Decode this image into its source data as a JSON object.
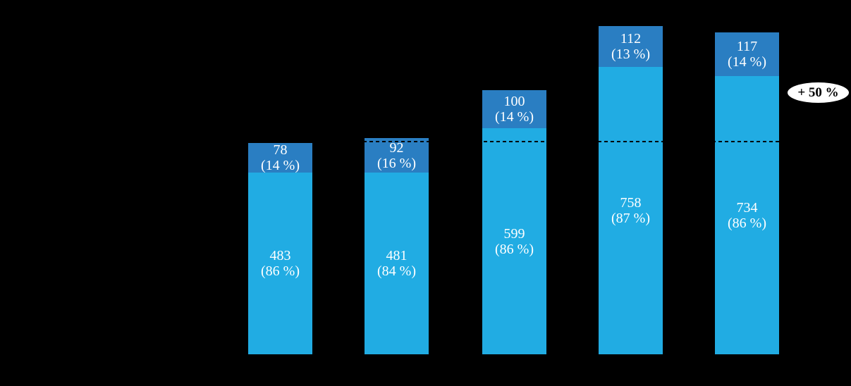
{
  "chart_data": {
    "type": "bar",
    "stacked": true,
    "title": "",
    "categories": [
      "",
      "",
      "",
      "",
      ""
    ],
    "series": [
      {
        "name": "bottom-segment-light-blue",
        "color": "#21ACE3",
        "values": [
          483,
          481,
          599,
          758,
          734
        ],
        "percent_labels": [
          "(86 %)",
          "(84 %)",
          "(86 %)",
          "(87 %)",
          "(86 %)"
        ]
      },
      {
        "name": "top-segment-dark-blue",
        "color": "#2A7EC2",
        "values": [
          78,
          92,
          100,
          112,
          117
        ],
        "percent_labels": [
          "(14 %)",
          "(16 %)",
          "(14 %)",
          "(13 %)",
          "(14 %)"
        ]
      }
    ],
    "totals": [
      561,
      573,
      699,
      870,
      851
    ],
    "legend": "none",
    "axes_visible": false,
    "annotations": {
      "dashed_reference_line": {
        "style": "dashed",
        "color": "#000000",
        "level_value": 561,
        "spans_bars": [
          2,
          3,
          4,
          5
        ]
      },
      "growth_badge": {
        "text": "+ 50 %",
        "shape": "ellipse",
        "fill": "#FFFFFF",
        "text_color": "#000000"
      }
    }
  },
  "bars": [
    {
      "top_value": "78",
      "top_pct": "(14 %)",
      "bottom_value": "483",
      "bottom_pct": "(86 %)"
    },
    {
      "top_value": "92",
      "top_pct": "(16 %)",
      "bottom_value": "481",
      "bottom_pct": "(84 %)"
    },
    {
      "top_value": "100",
      "top_pct": "(14 %)",
      "bottom_value": "599",
      "bottom_pct": "(86 %)"
    },
    {
      "top_value": "112",
      "top_pct": "(13 %)",
      "bottom_value": "758",
      "bottom_pct": "(87 %)"
    },
    {
      "top_value": "117",
      "top_pct": "(14 %)",
      "bottom_value": "734",
      "bottom_pct": "(86 %)"
    }
  ],
  "badge": {
    "label": "+ 50 %"
  },
  "colors": {
    "background": "#000000",
    "bar_bottom": "#21ACE3",
    "bar_top": "#2A7EC2",
    "label_text": "#FFFFFF"
  }
}
